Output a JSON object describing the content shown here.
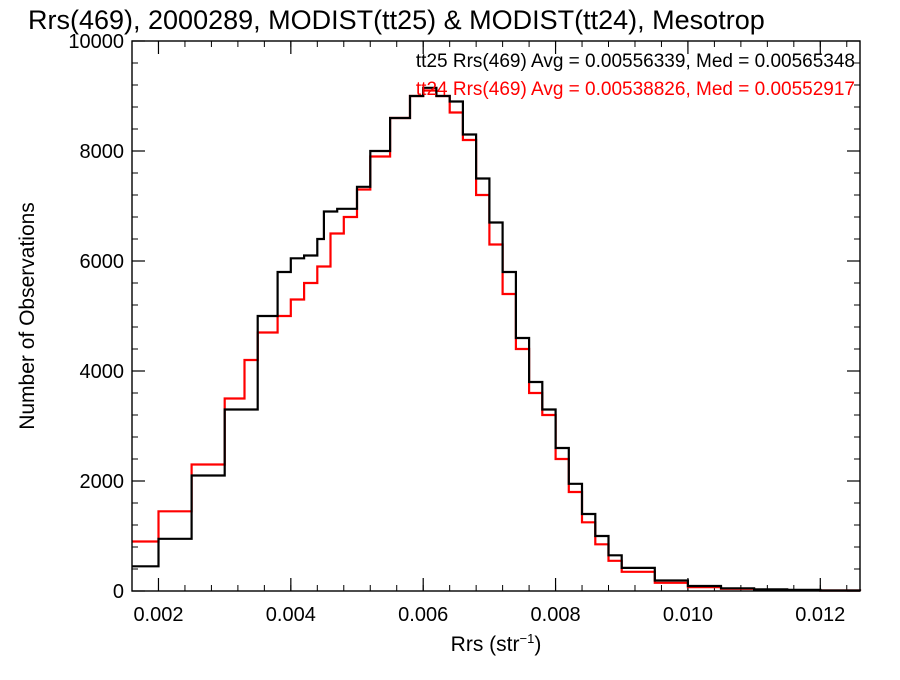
{
  "chart_data": {
    "type": "line",
    "title": "Rrs(469), 2000289, MODIST(tt25) & MODIST(tt24), Mesotrop",
    "xlabel_main": "Rrs (str",
    "xlabel_sup": "−1",
    "xlabel_end": ")",
    "ylabel": "Number of Observations",
    "xlim": [
      0.0016,
      0.0126
    ],
    "ylim": [
      0,
      10000
    ],
    "x_ticks": [
      0.002,
      0.004,
      0.006,
      0.008,
      0.01,
      0.012
    ],
    "x_tick_labels": [
      "0.002",
      "0.004",
      "0.006",
      "0.008",
      "0.010",
      "0.012"
    ],
    "x_minor_step": 0.0004,
    "y_ticks": [
      0,
      2000,
      4000,
      6000,
      8000,
      10000
    ],
    "y_tick_labels": [
      "0",
      "2000",
      "4000",
      "6000",
      "8000",
      "10000"
    ],
    "y_minor_step": 400,
    "grid": false,
    "step_plot": true,
    "series": [
      {
        "name": "tt25",
        "color": "#000000",
        "label": "tt25 Rrs(469) Avg = 0.00556339, Med = 0.00565348",
        "x": [
          0.0016,
          0.002,
          0.0025,
          0.003,
          0.0035,
          0.0038,
          0.004,
          0.0042,
          0.0044,
          0.0045,
          0.0047,
          0.005,
          0.0052,
          0.0055,
          0.0058,
          0.006,
          0.0062,
          0.0064,
          0.0066,
          0.0068,
          0.007,
          0.0072,
          0.0074,
          0.0076,
          0.0078,
          0.008,
          0.0082,
          0.0084,
          0.0086,
          0.0088,
          0.009,
          0.0095,
          0.01,
          0.0105,
          0.011,
          0.0115,
          0.012,
          0.0126
        ],
        "values": [
          450,
          950,
          2100,
          3300,
          5000,
          5800,
          6050,
          6100,
          6400,
          6900,
          6950,
          7350,
          8000,
          8600,
          9000,
          9150,
          9000,
          8900,
          8300,
          7500,
          6700,
          5800,
          4600,
          3800,
          3300,
          2600,
          1950,
          1400,
          1000,
          650,
          420,
          190,
          90,
          50,
          30,
          20,
          10,
          5
        ]
      },
      {
        "name": "tt24",
        "color": "#ff0000",
        "label": "tt24 Rrs(469) Avg = 0.00538826, Med = 0.00552917",
        "x": [
          0.0016,
          0.002,
          0.0025,
          0.003,
          0.0033,
          0.0035,
          0.0038,
          0.004,
          0.0042,
          0.0044,
          0.0046,
          0.0048,
          0.005,
          0.0052,
          0.0055,
          0.0058,
          0.006,
          0.0062,
          0.0064,
          0.0066,
          0.0068,
          0.007,
          0.0072,
          0.0074,
          0.0076,
          0.0078,
          0.008,
          0.0082,
          0.0084,
          0.0086,
          0.0088,
          0.009,
          0.0095,
          0.01,
          0.0105,
          0.011,
          0.0115,
          0.012,
          0.0126
        ],
        "values": [
          900,
          1450,
          2300,
          3500,
          4200,
          4700,
          5000,
          5300,
          5600,
          5900,
          6500,
          6800,
          7300,
          7900,
          8600,
          9000,
          9100,
          9000,
          8700,
          8200,
          7200,
          6300,
          5400,
          4400,
          3600,
          3200,
          2400,
          1800,
          1250,
          850,
          550,
          350,
          150,
          70,
          40,
          25,
          15,
          10,
          5
        ]
      }
    ]
  }
}
